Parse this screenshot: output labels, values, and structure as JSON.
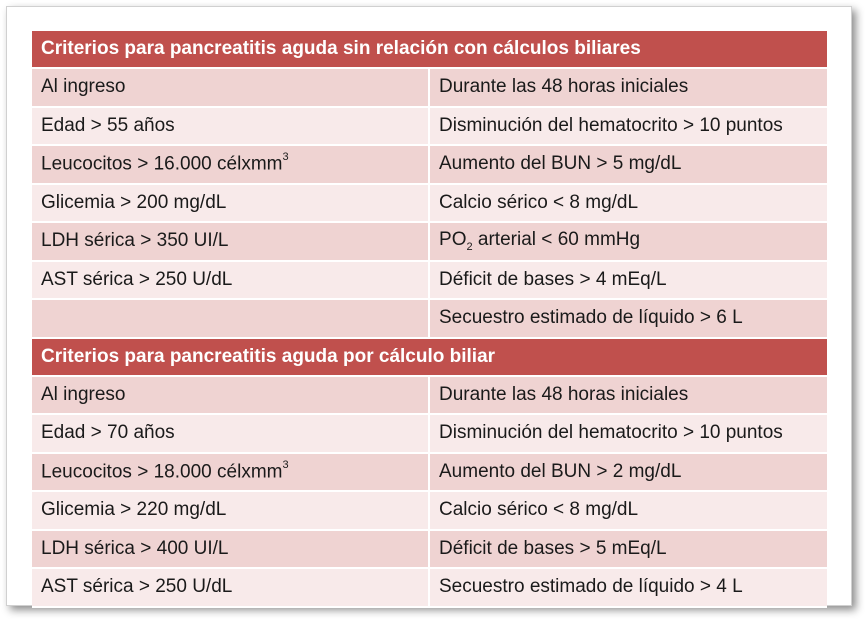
{
  "sections": [
    {
      "title": "Criterios para pancreatitis aguda sin relación con cálculos biliares",
      "rows": [
        [
          "Al ingreso",
          "Durante las 48 horas iniciales"
        ],
        [
          "Edad > 55 años",
          "Disminución del hematocrito > 10 puntos"
        ],
        [
          "Leucocitos > 16.000 célxmm³",
          "Aumento del BUN > 5 mg/dL"
        ],
        [
          "Glicemia > 200 mg/dL",
          "Calcio sérico < 8 mg/dL"
        ],
        [
          "LDH sérica > 350 UI/L",
          "PO₂ arterial < 60 mmHg"
        ],
        [
          "AST sérica > 250 U/dL",
          "Déficit de bases > 4 mEq/L"
        ],
        [
          "",
          "Secuestro estimado de líquido > 6 L"
        ]
      ]
    },
    {
      "title": "Criterios para pancreatitis aguda por cálculo biliar",
      "rows": [
        [
          "Al ingreso",
          "Durante las 48 horas iniciales"
        ],
        [
          "Edad > 70 años",
          "Disminución del hematocrito > 10 puntos"
        ],
        [
          "Leucocitos > 18.000 célxmm³",
          "Aumento del BUN > 2 mg/dL"
        ],
        [
          "Glicemia > 220 mg/dL",
          "Calcio sérico < 8 mg/dL"
        ],
        [
          "LDH sérica > 400 UI/L",
          "Déficit de bases > 5 mEq/L"
        ],
        [
          "AST sérica > 250 U/dL",
          "Secuestro estimado de líquido > 4 L"
        ]
      ]
    }
  ],
  "colors": {
    "header_bg": "#c0504d",
    "row_dark": "#efd3d2",
    "row_light": "#f8eaea"
  }
}
